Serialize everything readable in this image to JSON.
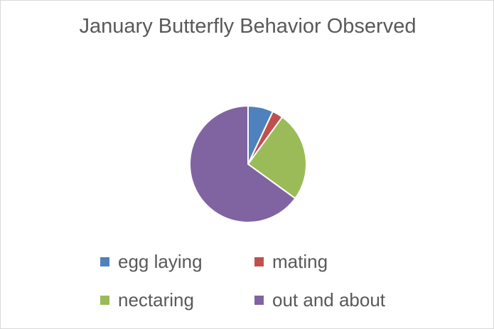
{
  "chart_data": {
    "type": "pie",
    "title": "January Butterfly Behavior Observed",
    "categories": [
      "egg laying",
      "mating",
      "nectaring",
      "out and about"
    ],
    "values": [
      7,
      3,
      25,
      65
    ],
    "colors": [
      "#4f81bd",
      "#c0504d",
      "#9bbb59",
      "#8064a2"
    ]
  }
}
